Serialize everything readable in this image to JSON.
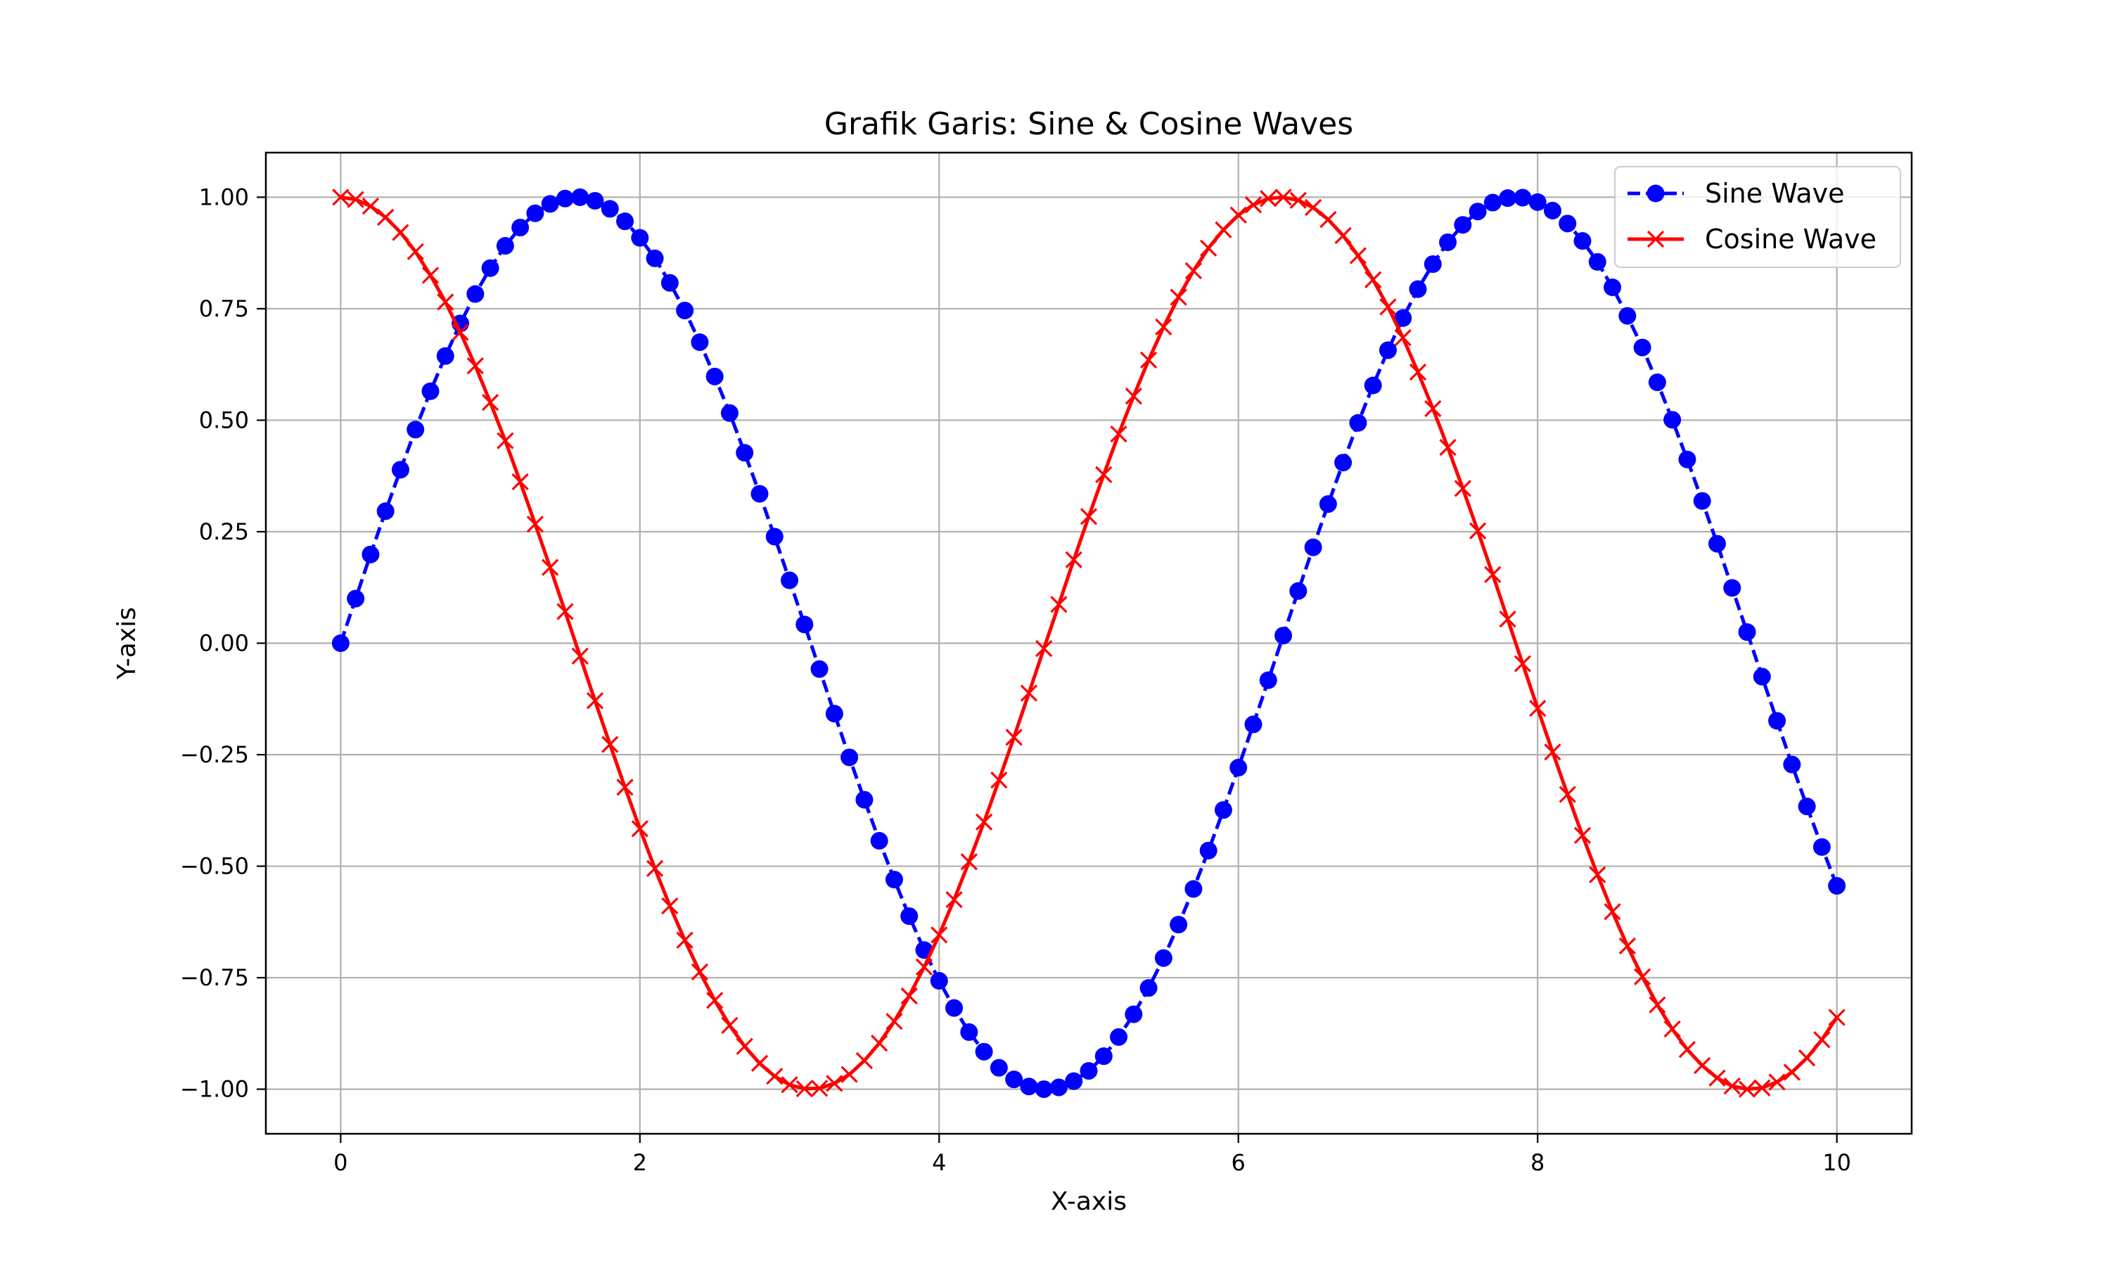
{
  "chart_data": {
    "type": "line",
    "title": "Grafik Garis: Sine & Cosine Waves",
    "xlabel": "X-axis",
    "ylabel": "Y-axis",
    "xlim": [
      -0.5,
      10.5
    ],
    "ylim": [
      -1.1,
      1.1
    ],
    "xticks": [
      0,
      2,
      4,
      6,
      8,
      10
    ],
    "xtick_labels": [
      "0",
      "2",
      "4",
      "6",
      "8",
      "10"
    ],
    "yticks": [
      -1.0,
      -0.75,
      -0.5,
      -0.25,
      0.0,
      0.25,
      0.5,
      0.75,
      1.0
    ],
    "ytick_labels": [
      "−1.00",
      "−0.75",
      "−0.50",
      "−0.25",
      "0.00",
      "0.25",
      "0.50",
      "0.75",
      "1.00"
    ],
    "grid": true,
    "legend": "top-right",
    "x": [
      0.0,
      0.1,
      0.2,
      0.3,
      0.4,
      0.5,
      0.6,
      0.7,
      0.8,
      0.9,
      1.0,
      1.1,
      1.2,
      1.3,
      1.4,
      1.5,
      1.6,
      1.7,
      1.8,
      1.9,
      2.0,
      2.1,
      2.2,
      2.3,
      2.4,
      2.5,
      2.6,
      2.7,
      2.8,
      2.9,
      3.0,
      3.1,
      3.2,
      3.3,
      3.4,
      3.5,
      3.6,
      3.7,
      3.8,
      3.9,
      4.0,
      4.1,
      4.2,
      4.3,
      4.4,
      4.5,
      4.6,
      4.7,
      4.8,
      4.9,
      5.0,
      5.1,
      5.2,
      5.3,
      5.4,
      5.5,
      5.6,
      5.7,
      5.8,
      5.9,
      6.0,
      6.1,
      6.2,
      6.3,
      6.4,
      6.5,
      6.6,
      6.7,
      6.8,
      6.9,
      7.0,
      7.1,
      7.2,
      7.3,
      7.4,
      7.5,
      7.6,
      7.7,
      7.8,
      7.9,
      8.0,
      8.1,
      8.2,
      8.3,
      8.4,
      8.5,
      8.6,
      8.7,
      8.8,
      8.9,
      9.0,
      9.1,
      9.2,
      9.3,
      9.4,
      9.5,
      9.6,
      9.7,
      9.8,
      9.9,
      10.0
    ],
    "series": [
      {
        "name": "Sine Wave",
        "color": "#0000ff",
        "line_style": "dashed",
        "marker": "circle",
        "values": [
          0.0,
          0.1,
          0.199,
          0.296,
          0.389,
          0.479,
          0.565,
          0.644,
          0.717,
          0.783,
          0.841,
          0.891,
          0.932,
          0.964,
          0.985,
          0.997,
          1.0,
          0.992,
          0.974,
          0.946,
          0.909,
          0.863,
          0.808,
          0.746,
          0.675,
          0.598,
          0.516,
          0.427,
          0.335,
          0.239,
          0.141,
          0.042,
          -0.058,
          -0.158,
          -0.256,
          -0.351,
          -0.443,
          -0.53,
          -0.612,
          -0.688,
          -0.757,
          -0.818,
          -0.872,
          -0.916,
          -0.952,
          -0.978,
          -0.994,
          -1.0,
          -0.996,
          -0.982,
          -0.959,
          -0.926,
          -0.883,
          -0.832,
          -0.773,
          -0.706,
          -0.631,
          -0.551,
          -0.465,
          -0.374,
          -0.279,
          -0.182,
          -0.083,
          0.017,
          0.117,
          0.215,
          0.312,
          0.405,
          0.494,
          0.578,
          0.657,
          0.729,
          0.794,
          0.85,
          0.899,
          0.938,
          0.968,
          0.988,
          0.998,
          0.999,
          0.989,
          0.97,
          0.941,
          0.902,
          0.855,
          0.798,
          0.734,
          0.663,
          0.585,
          0.501,
          0.412,
          0.319,
          0.223,
          0.124,
          0.025,
          -0.075,
          -0.174,
          -0.272,
          -0.366,
          -0.457,
          -0.544
        ]
      },
      {
        "name": "Cosine Wave",
        "color": "#ff0000",
        "line_style": "solid",
        "marker": "x",
        "values": [
          1.0,
          0.995,
          0.98,
          0.955,
          0.921,
          0.878,
          0.825,
          0.765,
          0.697,
          0.622,
          0.54,
          0.454,
          0.362,
          0.267,
          0.17,
          0.071,
          -0.029,
          -0.129,
          -0.227,
          -0.323,
          -0.416,
          -0.505,
          -0.589,
          -0.666,
          -0.737,
          -0.801,
          -0.857,
          -0.904,
          -0.942,
          -0.971,
          -0.99,
          -0.999,
          -0.998,
          -0.987,
          -0.967,
          -0.936,
          -0.897,
          -0.848,
          -0.791,
          -0.726,
          -0.654,
          -0.575,
          -0.49,
          -0.401,
          -0.307,
          -0.211,
          -0.112,
          -0.012,
          0.087,
          0.187,
          0.284,
          0.378,
          0.469,
          0.554,
          0.635,
          0.709,
          0.776,
          0.835,
          0.886,
          0.927,
          0.96,
          0.983,
          0.997,
          1.0,
          0.993,
          0.977,
          0.95,
          0.914,
          0.869,
          0.815,
          0.754,
          0.685,
          0.608,
          0.526,
          0.439,
          0.347,
          0.252,
          0.154,
          0.054,
          -0.046,
          -0.146,
          -0.244,
          -0.339,
          -0.431,
          -0.519,
          -0.602,
          -0.679,
          -0.748,
          -0.811,
          -0.865,
          -0.911,
          -0.947,
          -0.975,
          -0.993,
          -1.0,
          -0.997,
          -0.984,
          -0.962,
          -0.93,
          -0.889,
          -0.839
        ]
      }
    ]
  }
}
